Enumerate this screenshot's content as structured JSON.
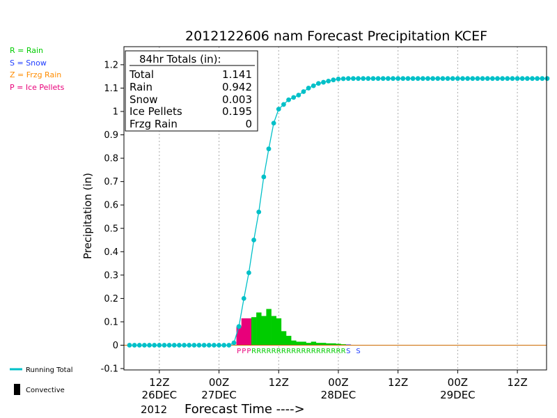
{
  "chart_data": {
    "type": "line",
    "title": "2012122606 nam Forecast Precipitation KCEF",
    "ylabel": "Precipitation (in)",
    "xlabel": "Forecast Time ---->",
    "year_label": "2012",
    "ylim": [
      -0.1,
      1.25
    ],
    "yticks": [
      -0.1,
      0,
      0.1,
      0.2,
      0.3,
      0.4,
      0.5,
      0.6,
      0.7,
      0.8,
      0.9,
      1,
      1.1,
      1.2
    ],
    "ytick_labels": [
      "-0.1",
      "0",
      "0.1",
      "0.2",
      "0.3",
      "0.4",
      "0.5",
      "0.6",
      "0.7",
      "0.8",
      "0.9",
      "1",
      "1.1",
      "1.2"
    ],
    "xlim_forecast_hours": [
      -2,
      86
    ],
    "x_ticks": [
      {
        "hour": 6,
        "line1": "12Z",
        "line2": "26DEC"
      },
      {
        "hour": 18,
        "line1": "00Z",
        "line2": "27DEC"
      },
      {
        "hour": 30,
        "line1": "12Z",
        "line2": ""
      },
      {
        "hour": 42,
        "line1": "00Z",
        "line2": "28DEC"
      },
      {
        "hour": 54,
        "line1": "12Z",
        "line2": ""
      },
      {
        "hour": 66,
        "line1": "00Z",
        "line2": "29DEC"
      },
      {
        "hour": 78,
        "line1": "12Z",
        "line2": ""
      }
    ],
    "legend": [
      {
        "code": "R",
        "label": "R = Rain",
        "color": "#00cc00"
      },
      {
        "code": "S",
        "label": "S = Snow",
        "color": "#1e3cff"
      },
      {
        "code": "Z",
        "label": "Z = Frzg Rain",
        "color": "#ff8c00"
      },
      {
        "code": "P",
        "label": "P = Ice Pellets",
        "color": "#e8007a"
      }
    ],
    "legend_lines": [
      {
        "label": "Running Total",
        "color": "#00c0c8"
      },
      {
        "label": "Convective",
        "color": "#000000"
      }
    ],
    "totals_box": {
      "header": "84hr Totals (in):",
      "rows": [
        {
          "label": "Total",
          "value": "1.141"
        },
        {
          "label": "Rain",
          "value": "0.942"
        },
        {
          "label": "Snow",
          "value": "0.003"
        },
        {
          "label": "Ice Pellets",
          "value": "0.195"
        },
        {
          "label": "Frzg Rain",
          "value": "0"
        }
      ]
    },
    "running_total": {
      "name": "Running Total",
      "color": "#00c0c8",
      "x": [
        0,
        1,
        2,
        3,
        4,
        5,
        6,
        7,
        8,
        9,
        10,
        11,
        12,
        13,
        14,
        15,
        16,
        17,
        18,
        19,
        20,
        21,
        22,
        23,
        24,
        25,
        26,
        27,
        28,
        29,
        30,
        31,
        32,
        33,
        34,
        35,
        36,
        37,
        38,
        39,
        40,
        41,
        42,
        43,
        44,
        45,
        46,
        47,
        48,
        49,
        50,
        51,
        52,
        53,
        54,
        55,
        56,
        57,
        58,
        59,
        60,
        61,
        62,
        63,
        64,
        65,
        66,
        67,
        68,
        69,
        70,
        71,
        72,
        73,
        74,
        75,
        76,
        77,
        78,
        79,
        80,
        81,
        82,
        83,
        84
      ],
      "y": [
        0,
        0,
        0,
        0,
        0,
        0,
        0,
        0,
        0,
        0,
        0,
        0,
        0,
        0,
        0,
        0,
        0,
        0,
        0,
        0,
        0,
        0.01,
        0.08,
        0.2,
        0.31,
        0.45,
        0.57,
        0.72,
        0.84,
        0.95,
        1.01,
        1.03,
        1.05,
        1.06,
        1.07,
        1.085,
        1.1,
        1.11,
        1.12,
        1.125,
        1.13,
        1.135,
        1.139,
        1.14,
        1.141,
        1.141,
        1.141,
        1.141,
        1.141,
        1.141,
        1.141,
        1.141,
        1.141,
        1.141,
        1.141,
        1.141,
        1.141,
        1.141,
        1.141,
        1.141,
        1.141,
        1.141,
        1.141,
        1.141,
        1.141,
        1.141,
        1.141,
        1.141,
        1.141,
        1.141,
        1.141,
        1.141,
        1.141,
        1.141,
        1.141,
        1.141,
        1.141,
        1.141,
        1.141,
        1.141,
        1.141,
        1.141,
        1.141,
        1.141,
        1.141
      ]
    },
    "hourly_bars": [
      {
        "hour": 22,
        "value": 0.08,
        "ptype": "P"
      },
      {
        "hour": 23,
        "value": 0.115,
        "ptype": "P"
      },
      {
        "hour": 24,
        "value": 0.115,
        "ptype": "P"
      },
      {
        "hour": 25,
        "value": 0.12,
        "ptype": "R"
      },
      {
        "hour": 26,
        "value": 0.14,
        "ptype": "R"
      },
      {
        "hour": 27,
        "value": 0.125,
        "ptype": "R"
      },
      {
        "hour": 28,
        "value": 0.155,
        "ptype": "R"
      },
      {
        "hour": 29,
        "value": 0.125,
        "ptype": "R"
      },
      {
        "hour": 30,
        "value": 0.115,
        "ptype": "R"
      },
      {
        "hour": 31,
        "value": 0.06,
        "ptype": "R"
      },
      {
        "hour": 32,
        "value": 0.04,
        "ptype": "R"
      },
      {
        "hour": 33,
        "value": 0.02,
        "ptype": "R"
      },
      {
        "hour": 34,
        "value": 0.015,
        "ptype": "R"
      },
      {
        "hour": 35,
        "value": 0.015,
        "ptype": "R"
      },
      {
        "hour": 36,
        "value": 0.01,
        "ptype": "R"
      },
      {
        "hour": 37,
        "value": 0.015,
        "ptype": "R"
      },
      {
        "hour": 38,
        "value": 0.01,
        "ptype": "R"
      },
      {
        "hour": 39,
        "value": 0.01,
        "ptype": "R"
      },
      {
        "hour": 40,
        "value": 0.008,
        "ptype": "R"
      },
      {
        "hour": 41,
        "value": 0.008,
        "ptype": "R"
      },
      {
        "hour": 42,
        "value": 0.006,
        "ptype": "R"
      },
      {
        "hour": 43,
        "value": 0.004,
        "ptype": "R"
      },
      {
        "hour": 44,
        "value": 0.003,
        "ptype": "S"
      }
    ],
    "ptype_strip": [
      {
        "hour": 22,
        "code": "P"
      },
      {
        "hour": 23,
        "code": "P"
      },
      {
        "hour": 24,
        "code": "P"
      },
      {
        "hour": 25,
        "code": "R"
      },
      {
        "hour": 26,
        "code": "R"
      },
      {
        "hour": 27,
        "code": "R"
      },
      {
        "hour": 28,
        "code": "R"
      },
      {
        "hour": 29,
        "code": "R"
      },
      {
        "hour": 30,
        "code": "R"
      },
      {
        "hour": 31,
        "code": "R"
      },
      {
        "hour": 32,
        "code": "R"
      },
      {
        "hour": 33,
        "code": "R"
      },
      {
        "hour": 34,
        "code": "R"
      },
      {
        "hour": 35,
        "code": "R"
      },
      {
        "hour": 36,
        "code": "R"
      },
      {
        "hour": 37,
        "code": "R"
      },
      {
        "hour": 38,
        "code": "R"
      },
      {
        "hour": 39,
        "code": "R"
      },
      {
        "hour": 40,
        "code": "R"
      },
      {
        "hour": 41,
        "code": "R"
      },
      {
        "hour": 42,
        "code": "R"
      },
      {
        "hour": 43,
        "code": "R"
      },
      {
        "hour": 44,
        "code": "S"
      },
      {
        "hour": 46,
        "code": "S"
      }
    ],
    "zero_line_color": "#cc6a00",
    "grid": true
  }
}
